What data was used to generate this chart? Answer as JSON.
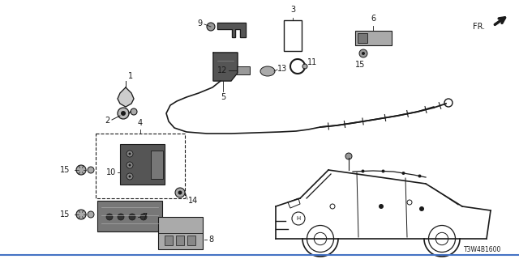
{
  "doc_number": "T3W4B1600",
  "background_color": "#ffffff",
  "line_color": "#1a1a1a",
  "gray_fill": "#888888",
  "dark_fill": "#444444",
  "figsize": [
    6.4,
    3.2
  ],
  "dpi": 100,
  "fr_text": "FR.",
  "title_fontsize": 6.5,
  "label_fontsize": 7
}
